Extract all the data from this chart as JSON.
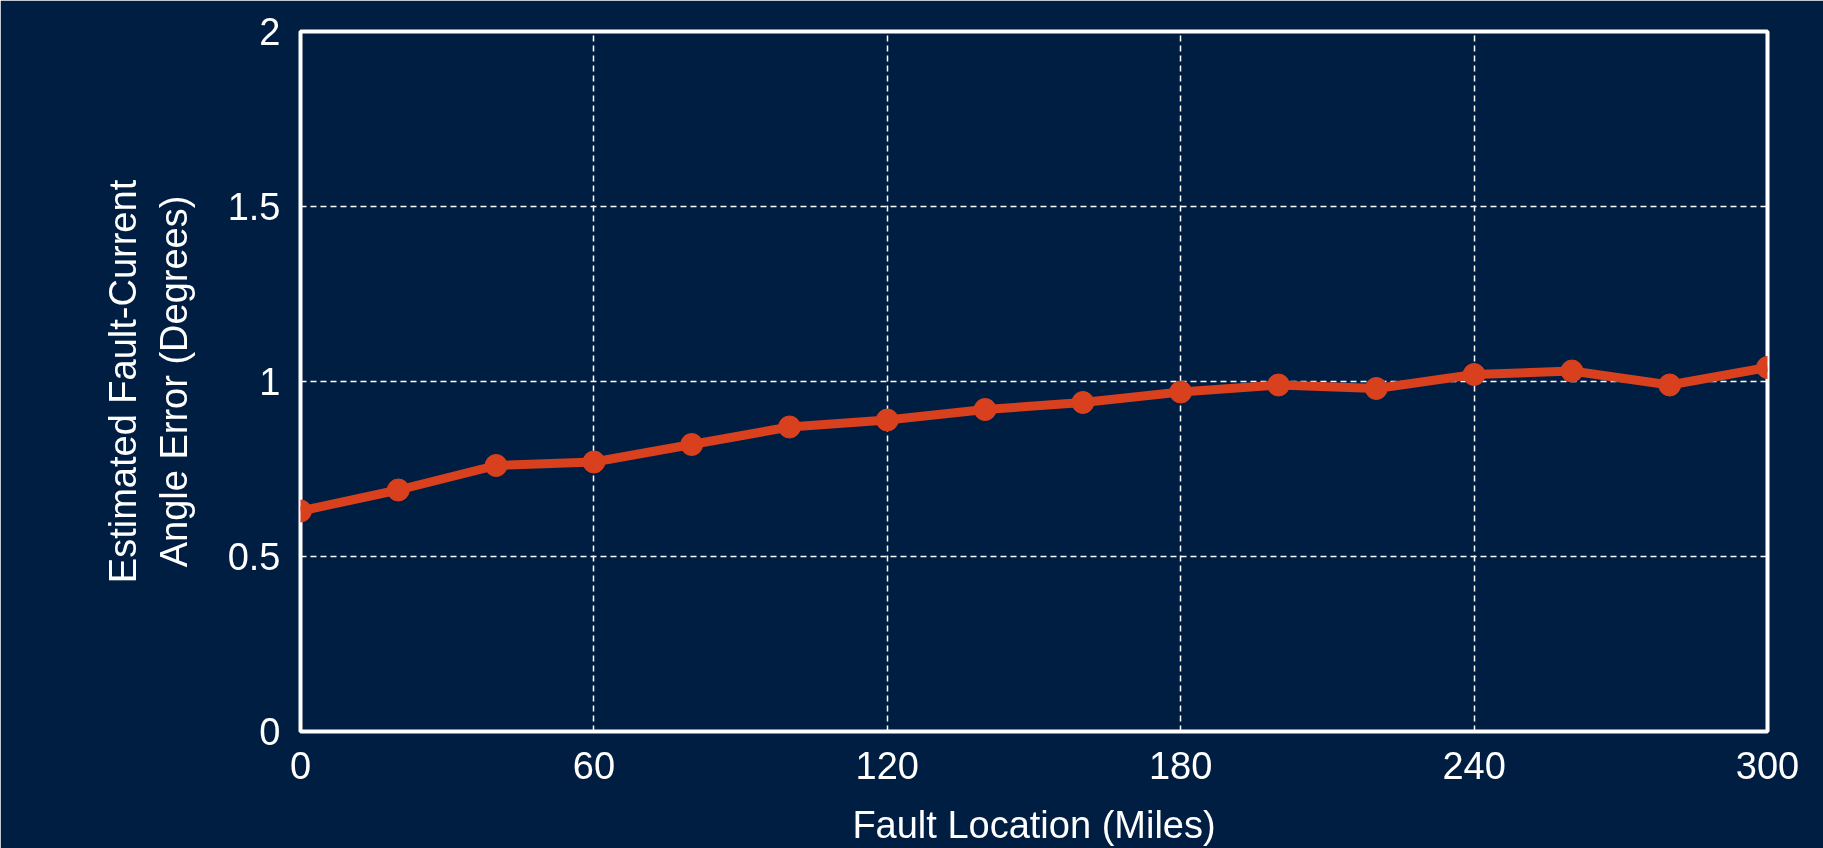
{
  "chart_data": {
    "type": "line",
    "xlabel": "Fault Location (Miles)",
    "ylabel": "Estimated Fault-Current\nAngle Error (Degrees)",
    "x": [
      0,
      20,
      40,
      60,
      80,
      100,
      120,
      140,
      160,
      180,
      200,
      220,
      240,
      260,
      280,
      300
    ],
    "series": [
      {
        "color": "#d9401e",
        "values": [
          0.63,
          0.69,
          0.76,
          0.77,
          0.82,
          0.87,
          0.89,
          0.92,
          0.94,
          0.97,
          0.99,
          0.98,
          1.02,
          1.03,
          0.99,
          1.04
        ]
      }
    ],
    "xlim": [
      0,
      300
    ],
    "ylim": [
      0,
      2
    ],
    "xticks": [
      0,
      60,
      120,
      180,
      240,
      300
    ],
    "yticks": [
      0,
      0.5,
      1,
      1.5,
      2
    ],
    "grid": true,
    "marker": "circle",
    "line_style": "solid"
  }
}
